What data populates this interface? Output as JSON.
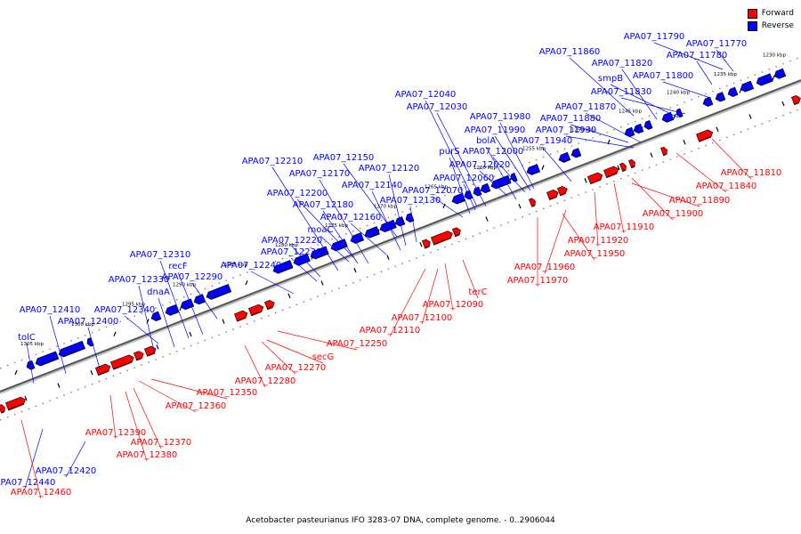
{
  "legend": {
    "forward_label": "Forward",
    "reverse_label": "Reverse",
    "forward_color": "#ff0000",
    "reverse_color": "#0000ff"
  },
  "caption": "Acetobacter pasteurianus IFO 3283-07 DNA, complete genome. - 0..2906044",
  "kbp_ticks": [
    "1230 kbp",
    "1235 kbp",
    "1240 kbp",
    "1245 kbp",
    "1250 kbp",
    "1255 kbp",
    "1260 kbp",
    "1265 kbp",
    "1270 kbp",
    "1275 kbp",
    "1280 kbp",
    "1285 kbp",
    "1290 kbp",
    "1295 kbp",
    "1300 kbp",
    "1305 kbp"
  ],
  "reverse_labels": [
    "APA07_11790",
    "APA07_11770",
    "APA07_11860",
    "APA07_11780",
    "APA07_11820",
    "smpB",
    "APA07_11800",
    "APA07_11830",
    "APA07_12040",
    "APA07_12030",
    "APA07_11980",
    "APA07_11870",
    "APA07_11990",
    "APA07_11880",
    "APA07_11930",
    "bolA",
    "APA07_11940",
    "purS",
    "APA07_12000",
    "APA07_12210",
    "APA07_12150",
    "APA07_12020",
    "APA07_12170",
    "APA07_12120",
    "APA07_12060",
    "APA07_12140",
    "APA07_12070",
    "APA07_12200",
    "APA07_12130",
    "APA07_12180",
    "APA07_12160",
    "moaC",
    "APA07_12220",
    "APA07_12230",
    "APA07_12310",
    "recF",
    "APA07_12240",
    "APA07_12290",
    "APA07_12330",
    "dnaA",
    "APA07_12340",
    "APA07_12410",
    "APA07_12400",
    "tolC",
    "APA07_12420",
    "APA07_12440"
  ],
  "forward_labels": [
    "APA07_11810",
    "APA07_11840",
    "APA07_11890",
    "APA07_11900",
    "APA07_11910",
    "APA07_11920",
    "APA07_11950",
    "APA07_11960",
    "APA07_11970",
    "terC",
    "APA07_12090",
    "APA07_12100",
    "APA07_12110",
    "APA07_12250",
    "secG",
    "APA07_12270",
    "APA07_12280",
    "APA07_12350",
    "APA07_12360",
    "APA07_12390",
    "APA07_12370",
    "APA07_12380",
    "APA07_12460"
  ]
}
